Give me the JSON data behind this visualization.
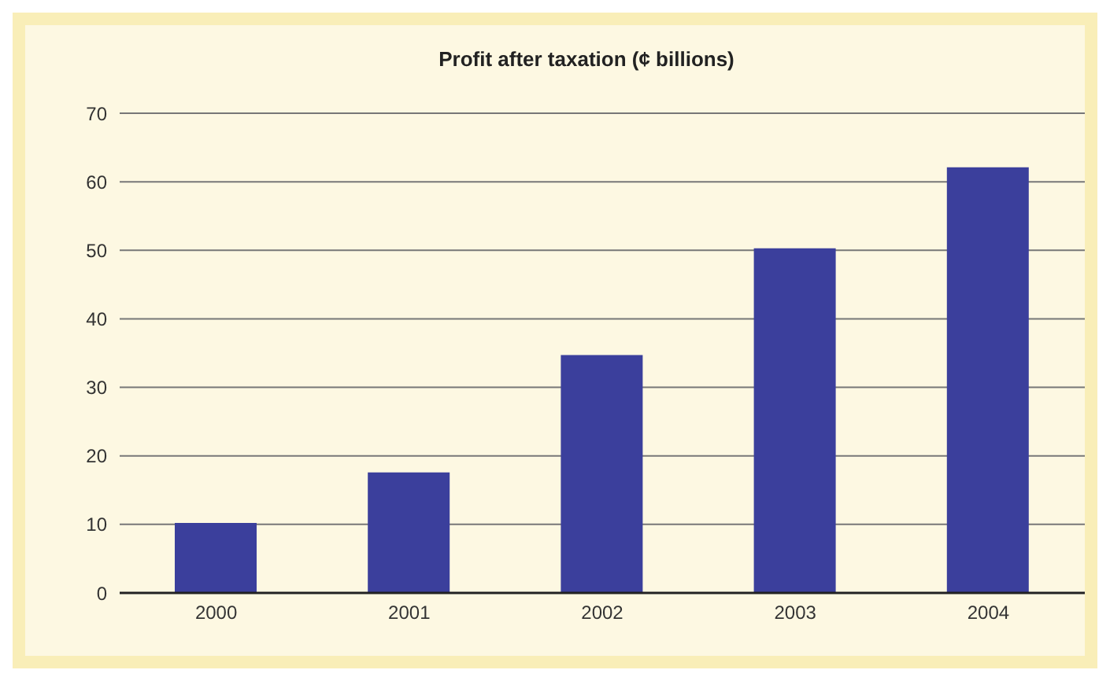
{
  "chart_data": {
    "type": "bar",
    "title": "Profit after taxation (¢ billions)",
    "categories": [
      "2000",
      "2001",
      "2002",
      "2003",
      "2004"
    ],
    "values": [
      10.2,
      17.6,
      34.7,
      50.3,
      62.1
    ],
    "color": "#3b3f9c",
    "ylim": [
      0,
      70
    ],
    "yticks": [
      0,
      10,
      20,
      30,
      40,
      50,
      60,
      70
    ],
    "grid": "y"
  }
}
